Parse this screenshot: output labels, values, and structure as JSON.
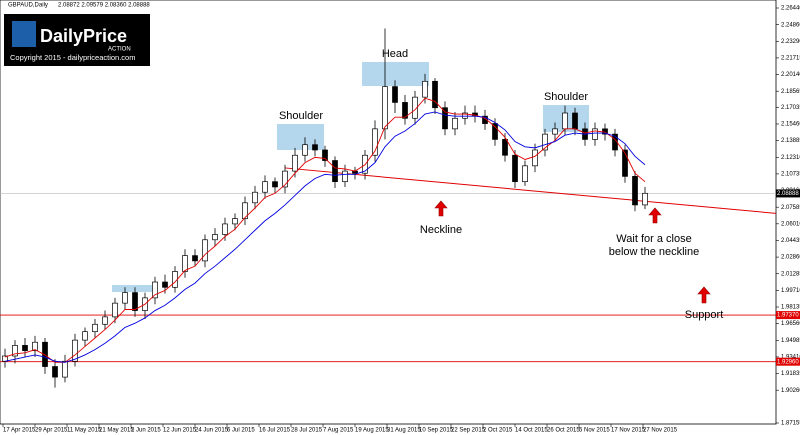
{
  "chart_data": {
    "type": "candlestick",
    "symbol": "GBPAUD,Daily",
    "quote": "2.08872 2.09579 2.08360 2.08888",
    "logo": {
      "name": "DailyPrice",
      "sub": "ACTION",
      "copyright": "Copyright 2015 - dailypriceaction.com"
    },
    "open": [
      1.93,
      1.935,
      1.945,
      1.94,
      1.948,
      1.925,
      1.915,
      1.93,
      1.95,
      1.958,
      1.965,
      1.972,
      1.985,
      1.995,
      1.978,
      1.99,
      2.005,
      2.0,
      2.015,
      2.03,
      2.025,
      2.045,
      2.05,
      2.06,
      2.065,
      2.08,
      2.09,
      2.1,
      2.095,
      2.11,
      2.125,
      2.135,
      2.13,
      2.12,
      2.1,
      2.11,
      2.108,
      2.125,
      2.15,
      2.19,
      2.175,
      2.16,
      2.18,
      2.195,
      2.17,
      2.15,
      2.16,
      2.165,
      2.162,
      2.155,
      2.14,
      2.125,
      2.1,
      2.115,
      2.13,
      2.145,
      2.15,
      2.165,
      2.15,
      2.14,
      2.15,
      2.145,
      2.13,
      2.105,
      2.078
    ],
    "high": [
      1.942,
      1.95,
      1.952,
      1.954,
      1.952,
      1.932,
      1.936,
      1.956,
      1.962,
      1.97,
      1.978,
      1.99,
      2.0,
      2.0,
      1.995,
      2.01,
      2.012,
      2.02,
      2.036,
      2.036,
      2.05,
      2.056,
      2.066,
      2.07,
      2.086,
      2.096,
      2.106,
      2.104,
      2.116,
      2.132,
      2.142,
      2.14,
      2.134,
      2.124,
      2.116,
      2.114,
      2.13,
      2.158,
      2.245,
      2.196,
      2.182,
      2.186,
      2.202,
      2.198,
      2.176,
      2.166,
      2.172,
      2.172,
      2.168,
      2.16,
      2.146,
      2.13,
      2.12,
      2.136,
      2.15,
      2.156,
      2.172,
      2.17,
      2.156,
      2.156,
      2.155,
      2.15,
      2.135,
      2.11,
      2.095
    ],
    "low": [
      1.924,
      1.928,
      1.934,
      1.934,
      1.918,
      1.905,
      1.91,
      1.925,
      1.944,
      1.952,
      1.96,
      1.966,
      1.979,
      1.972,
      1.97,
      1.984,
      1.994,
      1.995,
      2.009,
      2.02,
      2.019,
      2.039,
      2.044,
      2.054,
      2.059,
      2.074,
      2.084,
      2.089,
      2.089,
      2.104,
      2.119,
      2.124,
      2.114,
      2.094,
      2.095,
      2.102,
      2.102,
      2.119,
      2.14,
      2.165,
      2.154,
      2.154,
      2.174,
      2.164,
      2.144,
      2.144,
      2.154,
      2.156,
      2.149,
      2.134,
      2.119,
      2.094,
      2.096,
      2.109,
      2.124,
      2.139,
      2.144,
      2.144,
      2.134,
      2.134,
      2.139,
      2.124,
      2.099,
      2.072,
      2.074
    ],
    "close": [
      1.935,
      1.945,
      1.94,
      1.948,
      1.925,
      1.915,
      1.93,
      1.95,
      1.958,
      1.965,
      1.972,
      1.985,
      1.995,
      1.978,
      1.99,
      2.005,
      2.0,
      2.015,
      2.03,
      2.025,
      2.045,
      2.05,
      2.06,
      2.065,
      2.08,
      2.09,
      2.1,
      2.095,
      2.11,
      2.125,
      2.135,
      2.13,
      2.12,
      2.1,
      2.11,
      2.108,
      2.125,
      2.15,
      2.19,
      2.175,
      2.16,
      2.18,
      2.195,
      2.17,
      2.15,
      2.16,
      2.165,
      2.162,
      2.155,
      2.14,
      2.125,
      2.1,
      2.115,
      2.13,
      2.145,
      2.15,
      2.165,
      2.15,
      2.14,
      2.15,
      2.145,
      2.13,
      2.105,
      2.078,
      2.089
    ],
    "moving_averages": [
      {
        "color": "#e00000",
        "values": [
          1.934,
          1.937,
          1.938,
          1.941,
          1.936,
          1.929,
          1.929,
          1.936,
          1.944,
          1.952,
          1.96,
          1.969,
          1.979,
          1.979,
          1.984,
          1.993,
          1.997,
          2.005,
          2.016,
          2.02,
          2.031,
          2.039,
          2.048,
          2.055,
          2.066,
          2.075,
          2.085,
          2.089,
          2.097,
          2.108,
          2.118,
          2.123,
          2.122,
          2.113,
          2.112,
          2.11,
          2.116,
          2.129,
          2.152,
          2.161,
          2.161,
          2.168,
          2.179,
          2.176,
          2.166,
          2.164,
          2.164,
          2.163,
          2.16,
          2.152,
          2.142,
          2.126,
          2.121,
          2.124,
          2.132,
          2.139,
          2.15,
          2.15,
          2.146,
          2.148,
          2.147,
          2.14,
          2.127,
          2.108,
          2.1
        ]
      },
      {
        "color": "#0000e0",
        "values": [
          1.93,
          1.932,
          1.934,
          1.936,
          1.934,
          1.93,
          1.929,
          1.932,
          1.936,
          1.941,
          1.947,
          1.954,
          1.962,
          1.966,
          1.971,
          1.978,
          1.983,
          1.99,
          1.998,
          2.004,
          2.013,
          2.02,
          2.028,
          2.036,
          2.045,
          2.054,
          2.063,
          2.07,
          2.078,
          2.087,
          2.096,
          2.103,
          2.107,
          2.106,
          2.107,
          2.107,
          2.11,
          2.118,
          2.133,
          2.143,
          2.148,
          2.155,
          2.164,
          2.166,
          2.163,
          2.162,
          2.162,
          2.162,
          2.161,
          2.156,
          2.149,
          2.138,
          2.133,
          2.132,
          2.135,
          2.138,
          2.144,
          2.146,
          2.145,
          2.146,
          2.146,
          2.143,
          2.136,
          2.124,
          2.116
        ]
      }
    ],
    "current_price": {
      "value": 2.08888,
      "label": "2.08888"
    },
    "levels": [
      {
        "value": 1.9737,
        "label": "1.97370"
      },
      {
        "value": 1.9296,
        "label": "1.92960"
      }
    ],
    "neckline": [
      2.113,
      2.07
    ],
    "ylim": [
      1.87155,
      2.2644
    ],
    "yticks": [
      {
        "value": 2.2644,
        "label": "2.26440"
      },
      {
        "value": 2.2486,
        "label": "2.24860"
      },
      {
        "value": 2.2329,
        "label": "2.23290"
      },
      {
        "value": 2.21715,
        "label": "2.21715"
      },
      {
        "value": 2.2014,
        "label": "2.20140"
      },
      {
        "value": 2.18565,
        "label": "2.18565"
      },
      {
        "value": 2.17035,
        "label": "2.17035"
      },
      {
        "value": 2.1546,
        "label": "2.15460"
      },
      {
        "value": 2.13885,
        "label": "2.13885"
      },
      {
        "value": 2.1231,
        "label": "2.12310"
      },
      {
        "value": 2.10735,
        "label": "2.10735"
      },
      {
        "value": 2.0916,
        "label": "2.09160"
      },
      {
        "value": 2.07585,
        "label": "2.07585"
      },
      {
        "value": 2.0601,
        "label": "2.06010"
      },
      {
        "value": 2.04435,
        "label": "2.04435"
      },
      {
        "value": 2.0286,
        "label": "2.02860"
      },
      {
        "value": 2.01285,
        "label": "2.01285"
      },
      {
        "value": 1.9971,
        "label": "1.99710"
      },
      {
        "value": 1.98135,
        "label": "1.98135"
      },
      {
        "value": 1.9656,
        "label": "1.96560"
      },
      {
        "value": 1.94985,
        "label": "1.94985"
      },
      {
        "value": 1.9341,
        "label": "1.93410"
      },
      {
        "value": 1.91835,
        "label": "1.91835"
      },
      {
        "value": 1.9026,
        "label": "1.90260"
      },
      {
        "value": 1.87155,
        "label": "1.87155"
      }
    ],
    "dates": [
      "17 Apr 2015",
      "29 Apr 2015",
      "11 May 2015",
      "21 May 2015",
      "2 Jun 2015",
      "12 Jun 2015",
      "24 Jun 2015",
      "6 Jul 2015",
      "16 Jul 2015",
      "28 Jul 2015",
      "7 Aug 2015",
      "19 Aug 2015",
      "31 Aug 2015",
      "10 Sep 2015",
      "22 Sep 2015",
      "2 Oct 2015",
      "14 Oct 2015",
      "26 Oct 2015",
      "5 Nov 2015",
      "17 Nov 2015",
      "27 Nov 2015"
    ],
    "annotations": {
      "left_shoulder": "Shoulder",
      "head": "Head",
      "right_shoulder": "Shoulder",
      "neckline": "Neckline",
      "wait": [
        "Wait for a close",
        "below the neckline"
      ],
      "support": "Support"
    }
  }
}
